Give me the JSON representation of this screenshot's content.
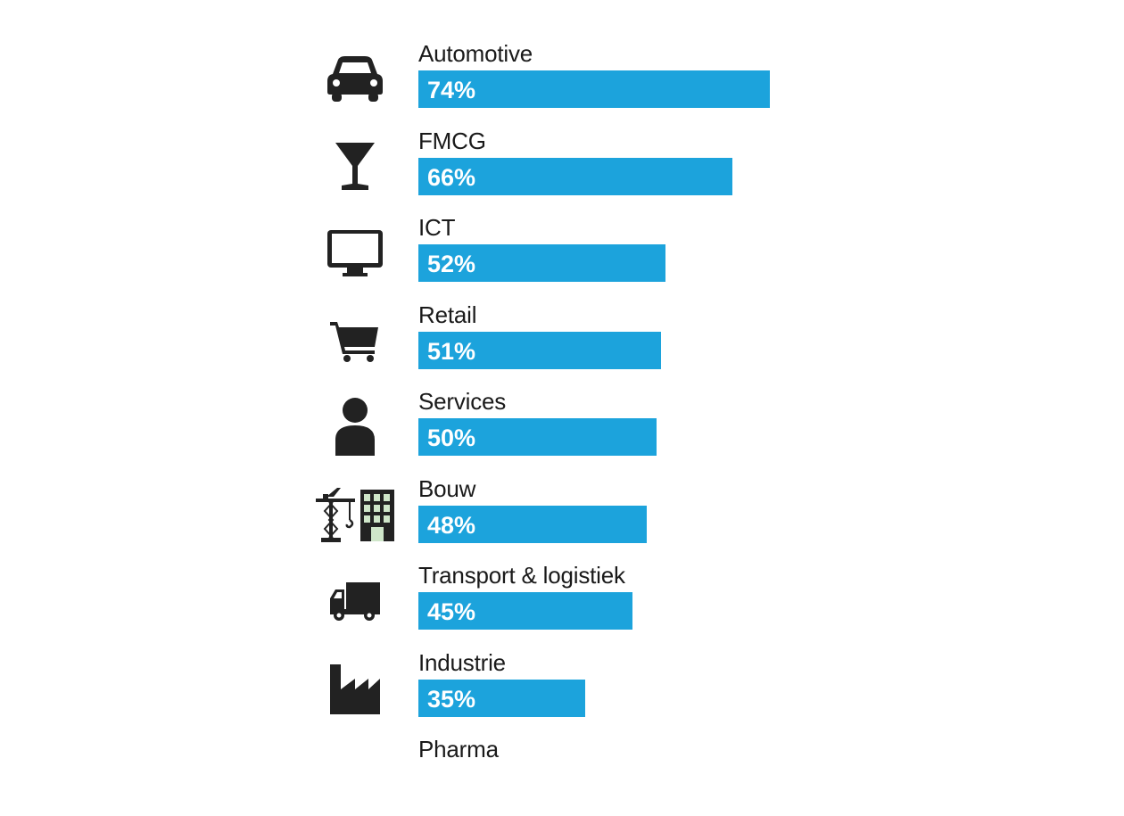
{
  "chart_data": {
    "type": "bar",
    "orientation": "horizontal",
    "categories": [
      "Automotive",
      "FMCG",
      "ICT",
      "Retail",
      "Services",
      "Bouw",
      "Transport & logistiek",
      "Industrie",
      "Pharma"
    ],
    "values": [
      74,
      66,
      52,
      51,
      50,
      48,
      45,
      35,
      null
    ],
    "value_labels": [
      "74%",
      "66%",
      "52%",
      "51%",
      "50%",
      "48%",
      "45%",
      "35%",
      ""
    ],
    "icons": [
      "car-icon",
      "cocktail-glass-icon",
      "monitor-icon",
      "shopping-cart-icon",
      "person-icon",
      "crane-building-icon",
      "truck-icon",
      "factory-icon",
      ""
    ],
    "bar_color": "#1ca3dc",
    "icon_color": "#222222",
    "xlim": [
      0,
      100
    ],
    "grid": false,
    "legend": "none"
  }
}
